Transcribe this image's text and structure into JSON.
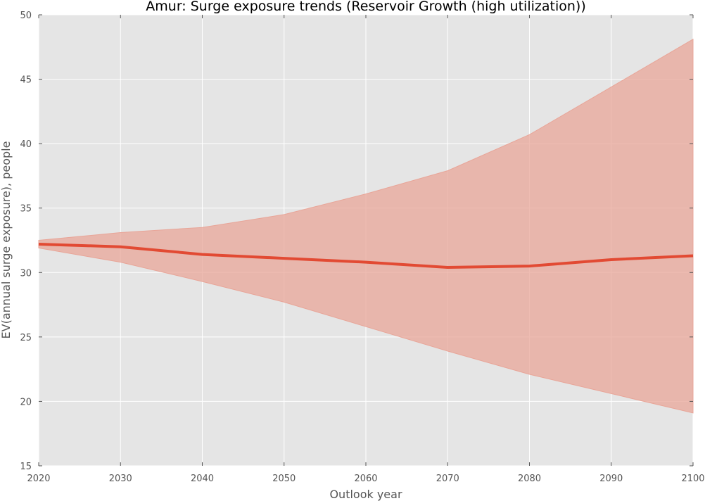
{
  "chart_data": {
    "type": "area",
    "title": "Amur: Surge exposure trends (Reservoir Growth (high utilization))",
    "xlabel": "Outlook year",
    "ylabel": "EV(annual surge exposure), people",
    "xlim": [
      2020,
      2100
    ],
    "ylim": [
      15,
      50
    ],
    "x_ticks": [
      2020,
      2030,
      2040,
      2050,
      2060,
      2070,
      2080,
      2090,
      2100
    ],
    "y_ticks": [
      15,
      20,
      25,
      30,
      35,
      40,
      45,
      50
    ],
    "grid": true,
    "x": [
      2020,
      2030,
      2040,
      2050,
      2060,
      2070,
      2080,
      2090,
      2100
    ],
    "series": [
      {
        "values": [
          32.2,
          32.0,
          31.4,
          31.1,
          30.8,
          30.4,
          30.5,
          31.0,
          31.3
        ],
        "lower": [
          31.9,
          30.8,
          29.3,
          27.7,
          25.8,
          23.9,
          22.1,
          20.6,
          19.1
        ],
        "upper": [
          32.5,
          33.1,
          33.5,
          34.5,
          36.1,
          37.9,
          40.7,
          44.4,
          48.1
        ]
      }
    ],
    "colors": {
      "line": "#e24a33",
      "band": "#e8a598",
      "background": "#e5e5e5",
      "grid": "#ffffff"
    }
  }
}
